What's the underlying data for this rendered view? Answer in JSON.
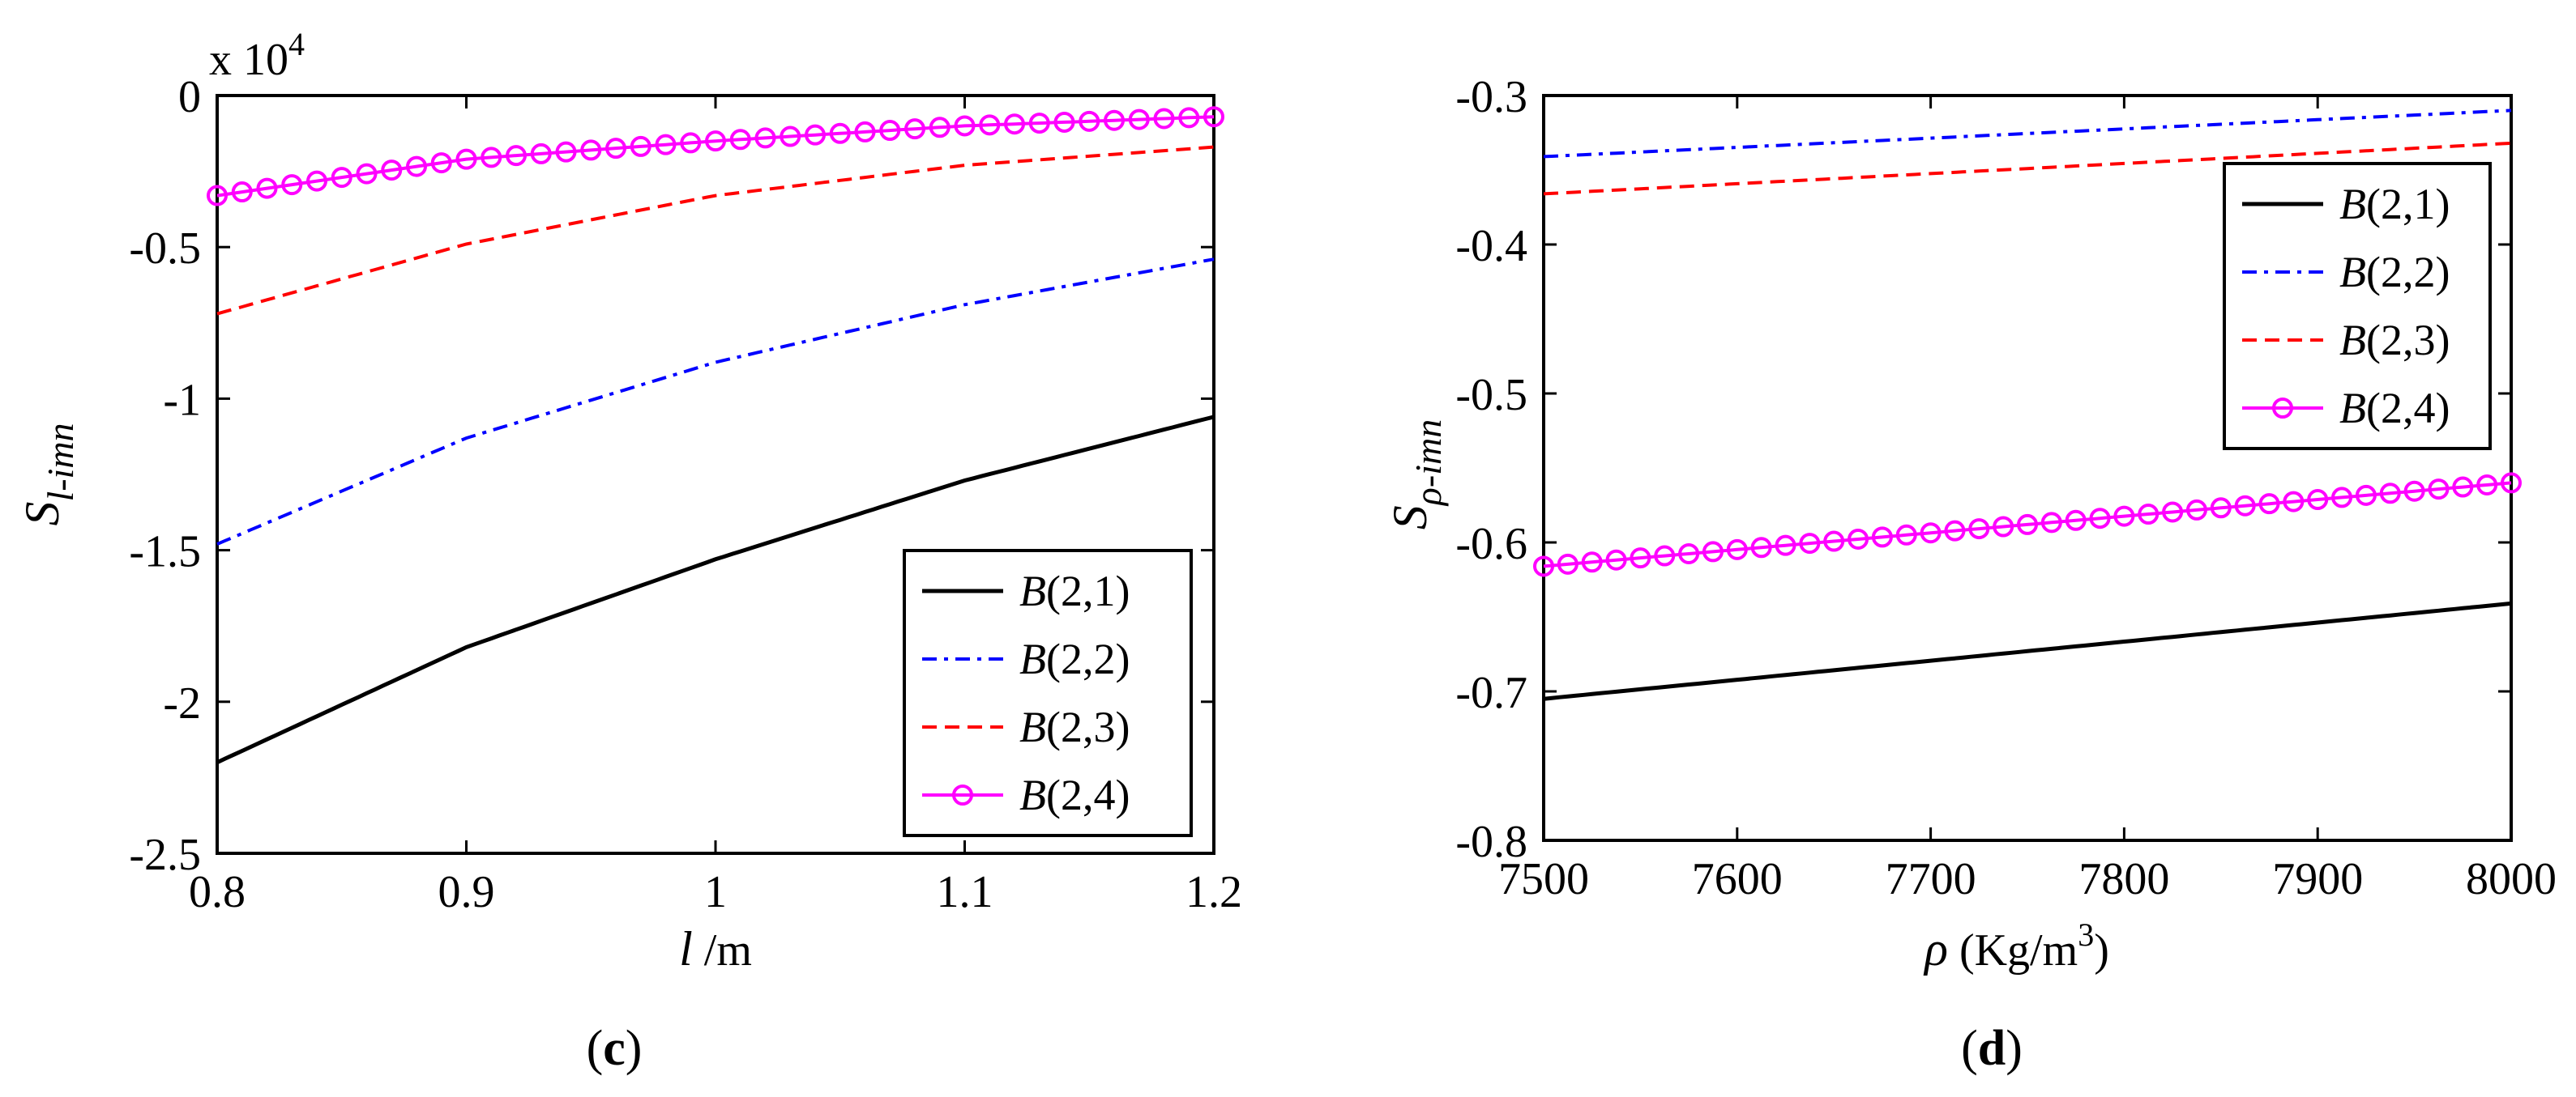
{
  "chart_data": [
    {
      "type": "line",
      "panel_label": "c",
      "multiplier_label": {
        "base": "x 10",
        "exp": "4"
      },
      "xlabel": {
        "var": "l",
        "unit": " /m"
      },
      "ylabel": {
        "main": "S",
        "sub": "l-imn"
      },
      "xlim": [
        0.8,
        1.2
      ],
      "ylim": [
        -2.5,
        0
      ],
      "xticks": [
        0.8,
        0.9,
        1,
        1.1,
        1.2
      ],
      "xtick_labels": [
        "0.8",
        "0.9",
        "1",
        "1.1",
        "1.2"
      ],
      "yticks": [
        0,
        -0.5,
        -1,
        -1.5,
        -2,
        -2.5
      ],
      "ytick_labels": [
        "0",
        "-0.5",
        "-1",
        "-1.5",
        "-2",
        "-2.5"
      ],
      "legend_position": "bottom-right",
      "series": [
        {
          "name": "B(2,1)",
          "label_var": "B",
          "label_args": "(2,1)",
          "color": "#000000",
          "style": "solid",
          "x": [
            0.8,
            0.9,
            1.0,
            1.1,
            1.2
          ],
          "values": [
            -2.2,
            -1.82,
            -1.53,
            -1.27,
            -1.06
          ]
        },
        {
          "name": "B(2,2)",
          "label_var": "B",
          "label_args": "(2,2)",
          "color": "#0000ff",
          "style": "dashdot",
          "x": [
            0.8,
            0.9,
            1.0,
            1.1,
            1.2
          ],
          "values": [
            -1.48,
            -1.13,
            -0.88,
            -0.69,
            -0.54
          ]
        },
        {
          "name": "B(2,3)",
          "label_var": "B",
          "label_args": "(2,3)",
          "color": "#ff0000",
          "style": "dashed",
          "x": [
            0.8,
            0.9,
            1.0,
            1.1,
            1.2
          ],
          "values": [
            -0.72,
            -0.49,
            -0.33,
            -0.23,
            -0.17
          ]
        },
        {
          "name": "B(2,4)",
          "label_var": "B",
          "label_args": "(2,4)",
          "color": "#ff00ff",
          "style": "solid-circle",
          "x": [
            0.8,
            0.9,
            1.0,
            1.1,
            1.2
          ],
          "values": [
            -0.33,
            -0.21,
            -0.15,
            -0.1,
            -0.07
          ]
        }
      ]
    },
    {
      "type": "line",
      "panel_label": "d",
      "xlabel": {
        "var": "ρ",
        "unit": " (Kg/m",
        "exp": "3",
        "close": ")"
      },
      "ylabel": {
        "main": "S",
        "sub": "ρ-imn"
      },
      "xlim": [
        7500,
        8000
      ],
      "ylim": [
        -0.8,
        -0.3
      ],
      "xticks": [
        7500,
        7600,
        7700,
        7800,
        7900,
        8000
      ],
      "xtick_labels": [
        "7500",
        "7600",
        "7700",
        "7800",
        "7900",
        "8000"
      ],
      "yticks": [
        -0.3,
        -0.4,
        -0.5,
        -0.6,
        -0.7,
        -0.8
      ],
      "ytick_labels": [
        "-0.3",
        "-0.4",
        "-0.5",
        "-0.6",
        "-0.7",
        "-0.8"
      ],
      "legend_position": "top-right",
      "series": [
        {
          "name": "B(2,1)",
          "label_var": "B",
          "label_args": "(2,1)",
          "color": "#000000",
          "style": "solid",
          "x": [
            7500,
            8000
          ],
          "values": [
            -0.705,
            -0.641
          ]
        },
        {
          "name": "B(2,2)",
          "label_var": "B",
          "label_args": "(2,2)",
          "color": "#0000ff",
          "style": "dashdot",
          "x": [
            7500,
            8000
          ],
          "values": [
            -0.341,
            -0.31
          ]
        },
        {
          "name": "B(2,3)",
          "label_var": "B",
          "label_args": "(2,3)",
          "color": "#ff0000",
          "style": "dashed",
          "x": [
            7500,
            8000
          ],
          "values": [
            -0.366,
            -0.332
          ]
        },
        {
          "name": "B(2,4)",
          "label_var": "B",
          "label_args": "(2,4)",
          "color": "#ff00ff",
          "style": "solid-circle",
          "x": [
            7500,
            8000
          ],
          "values": [
            -0.616,
            -0.56
          ]
        }
      ]
    }
  ]
}
